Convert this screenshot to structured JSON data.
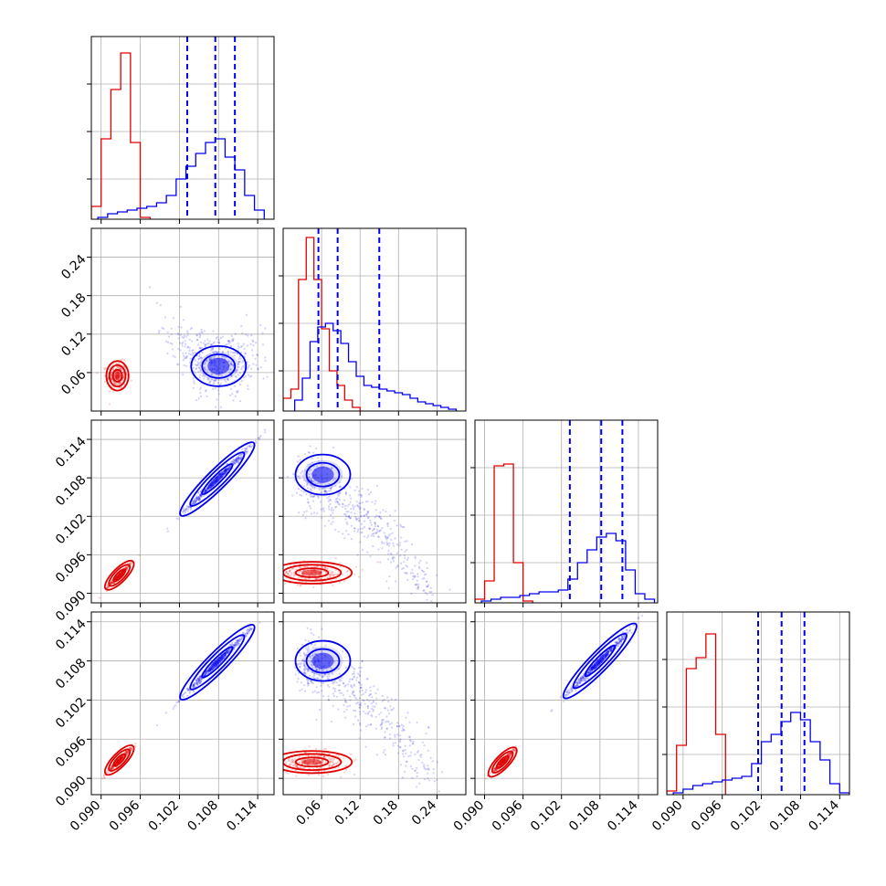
{
  "colors": {
    "red": "#e00000",
    "blue": "#0000ee",
    "grid": "#b0b0b0",
    "axes": "#000000"
  },
  "chart_data": {
    "type": "corner",
    "grid": true,
    "params": [
      {
        "range": [
          0.0885,
          0.1165
        ],
        "ticks": [
          0.09,
          0.096,
          0.102,
          0.108,
          0.114
        ],
        "tick_labels": [
          "0.090",
          "0.096",
          "0.102",
          "0.108",
          "0.114"
        ]
      },
      {
        "range": [
          0.0,
          0.285
        ],
        "ticks": [
          0.06,
          0.12,
          0.18,
          0.24
        ],
        "tick_labels": [
          "0.06",
          "0.12",
          "0.18",
          "0.24"
        ]
      },
      {
        "range": [
          0.0885,
          0.117
        ],
        "ticks": [
          0.09,
          0.096,
          0.102,
          0.108,
          0.114
        ],
        "tick_labels": [
          "0.090",
          "0.096",
          "0.102",
          "0.108",
          "0.114"
        ]
      },
      {
        "range": [
          0.0875,
          0.1155
        ],
        "ticks": [
          0.09,
          0.096,
          0.102,
          0.108,
          0.114
        ],
        "tick_labels": [
          "0.090",
          "0.096",
          "0.102",
          "0.108",
          "0.114"
        ]
      }
    ],
    "series": [
      {
        "color": "red",
        "hist": [
          {
            "edges": [
              0.0885,
              0.09,
              0.0915,
              0.093,
              0.0945,
              0.096,
              0.0975
            ],
            "counts": [
              0.07,
              0.44,
              0.71,
              0.91,
              0.42,
              0.01
            ]
          },
          {
            "edges": [
              0.0,
              0.012,
              0.024,
              0.036,
              0.048,
              0.06,
              0.072,
              0.084,
              0.096,
              0.108,
              0.12
            ],
            "counts": [
              0.07,
              0.12,
              0.72,
              0.95,
              0.72,
              0.45,
              0.22,
              0.14,
              0.06,
              0.02
            ]
          },
          {
            "edges": [
              0.0885,
              0.09,
              0.0915,
              0.093,
              0.0945,
              0.096,
              0.0975
            ],
            "counts": [
              0.02,
              0.12,
              0.75,
              0.76,
              0.22,
              0.01
            ]
          },
          {
            "edges": [
              0.0875,
              0.089,
              0.0905,
              0.092,
              0.0935,
              0.095,
              0.0965
            ],
            "counts": [
              0.02,
              0.27,
              0.69,
              0.75,
              0.88,
              0.33
            ]
          }
        ],
        "pairs": [
          {
            "row": 1,
            "col": 0,
            "center": [
              0.0925,
              0.055
            ],
            "cov": [
              [
                6e-07,
                1.2e-07
              ],
              [
                1.2e-07,
                0.00011
              ]
            ]
          },
          {
            "row": 2,
            "col": 0,
            "center": [
              0.0928,
              0.0928
            ],
            "cov": [
              [
                9e-07,
                9e-07
              ],
              [
                9e-07,
                9.5e-07
              ]
            ]
          },
          {
            "row": 2,
            "col": 1,
            "center": [
              0.045,
              0.0932
            ],
            "cov": [
              [
                0.0008,
                0.0
              ],
              [
                0.0,
                6e-07
              ]
            ]
          },
          {
            "row": 3,
            "col": 0,
            "center": [
              0.0928,
              0.0928
            ],
            "cov": [
              [
                9e-07,
                9e-07
              ],
              [
                9e-07,
                9.5e-07
              ]
            ]
          },
          {
            "row": 3,
            "col": 1,
            "center": [
              0.045,
              0.0925
            ],
            "cov": [
              [
                0.0008,
                0.0
              ],
              [
                0.0,
                6e-07
              ]
            ]
          },
          {
            "row": 3,
            "col": 2,
            "center": [
              0.0928,
              0.0925
            ],
            "cov": [
              [
                9e-07,
                9e-07
              ],
              [
                9e-07,
                9.5e-07
              ]
            ]
          }
        ]
      },
      {
        "color": "blue",
        "quantiles": [
          [
            0.1032,
            0.1075,
            0.1105
          ],
          [
            0.055,
            0.085,
            0.15
          ],
          [
            0.1033,
            0.1082,
            0.1115
          ],
          [
            0.1015,
            0.1051,
            0.1086
          ]
        ],
        "hist": [
          {
            "edges": [
              0.0895,
              0.091,
              0.0925,
              0.094,
              0.0955,
              0.097,
              0.0985,
              0.1,
              0.1015,
              0.103,
              0.1045,
              0.106,
              0.1075,
              0.109,
              0.1105,
              0.112,
              0.1135,
              0.115
            ],
            "counts": [
              0.01,
              0.03,
              0.04,
              0.05,
              0.06,
              0.07,
              0.09,
              0.13,
              0.22,
              0.29,
              0.36,
              0.42,
              0.44,
              0.34,
              0.27,
              0.13,
              0.05
            ]
          },
          {
            "edges": [
              0.018,
              0.03,
              0.042,
              0.054,
              0.066,
              0.078,
              0.09,
              0.102,
              0.114,
              0.126,
              0.138,
              0.15,
              0.162,
              0.174,
              0.186,
              0.198,
              0.21,
              0.222,
              0.234,
              0.246,
              0.258,
              0.27
            ],
            "counts": [
              0.06,
              0.18,
              0.38,
              0.46,
              0.48,
              0.44,
              0.37,
              0.27,
              0.19,
              0.14,
              0.13,
              0.12,
              0.11,
              0.1,
              0.09,
              0.07,
              0.05,
              0.04,
              0.03,
              0.02,
              0.01
            ]
          },
          {
            "edges": [
              0.0895,
              0.091,
              0.0925,
              0.094,
              0.0955,
              0.097,
              0.0985,
              0.1,
              0.1015,
              0.103,
              0.1045,
              0.106,
              0.1075,
              0.109,
              0.1105,
              0.112,
              0.1135,
              0.115,
              0.1165
            ],
            "counts": [
              0.01,
              0.02,
              0.03,
              0.03,
              0.04,
              0.05,
              0.06,
              0.06,
              0.07,
              0.13,
              0.22,
              0.29,
              0.36,
              0.38,
              0.34,
              0.18,
              0.05,
              0.02
            ]
          },
          {
            "edges": [
              0.0885,
              0.09,
              0.0915,
              0.093,
              0.0945,
              0.096,
              0.0975,
              0.099,
              0.1005,
              0.102,
              0.1035,
              0.105,
              0.1065,
              0.108,
              0.1095,
              0.111,
              0.1125,
              0.114,
              0.1155
            ],
            "counts": [
              0.01,
              0.03,
              0.05,
              0.06,
              0.07,
              0.08,
              0.09,
              0.1,
              0.17,
              0.29,
              0.33,
              0.4,
              0.45,
              0.41,
              0.29,
              0.19,
              0.06,
              0.01
            ]
          }
        ],
        "pairs": [
          {
            "row": 1,
            "col": 0,
            "shape": "banana",
            "core": [
              0.108,
              0.07
            ]
          },
          {
            "row": 2,
            "col": 0,
            "center": [
              0.1078,
              0.1078
            ],
            "cov": [
              [
                6.5e-06,
                6.5e-06
              ],
              [
                6.5e-06,
                6.6e-06
              ]
            ]
          },
          {
            "row": 2,
            "col": 1,
            "shape": "banana",
            "core": [
              0.062,
              0.1085
            ]
          },
          {
            "row": 3,
            "col": 0,
            "center": [
              0.1078,
              0.1078
            ],
            "cov": [
              [
                6.5e-06,
                6.5e-06
              ],
              [
                6.5e-06,
                6.6e-06
              ]
            ]
          },
          {
            "row": 3,
            "col": 1,
            "shape": "banana",
            "core": [
              0.062,
              0.108
            ]
          },
          {
            "row": 3,
            "col": 2,
            "center": [
              0.108,
              0.108
            ],
            "cov": [
              [
                6.5e-06,
                6.5e-06
              ],
              [
                6.5e-06,
                6.6e-06
              ]
            ]
          }
        ]
      }
    ]
  }
}
